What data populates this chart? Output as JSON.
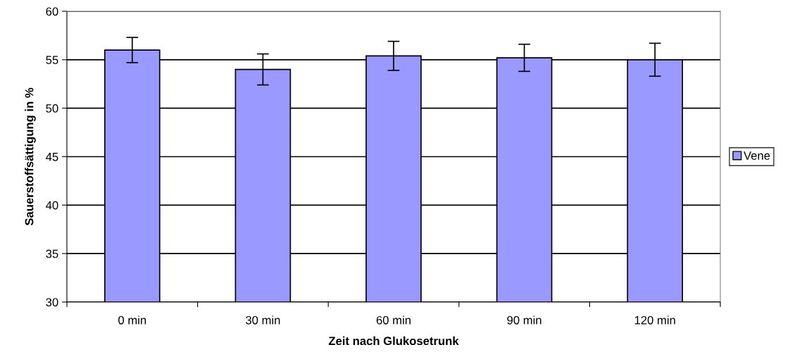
{
  "chart_data": {
    "type": "bar",
    "xlabel": "Zeit nach Glukosetrunk",
    "ylabel": "Sauerstoffsättigung in %",
    "categories": [
      "0 min",
      "30 min",
      "60 min",
      "90 min",
      "120 min"
    ],
    "series": [
      {
        "name": "Vene",
        "color": "#9999ff",
        "values": [
          56.0,
          54.0,
          55.4,
          55.2,
          55.0
        ],
        "errors": [
          1.3,
          1.6,
          1.5,
          1.4,
          1.7
        ]
      }
    ],
    "ylim": [
      30,
      60
    ],
    "yticks": [
      30,
      35,
      40,
      45,
      50,
      55,
      60
    ],
    "grid": "y",
    "legend": "right"
  }
}
